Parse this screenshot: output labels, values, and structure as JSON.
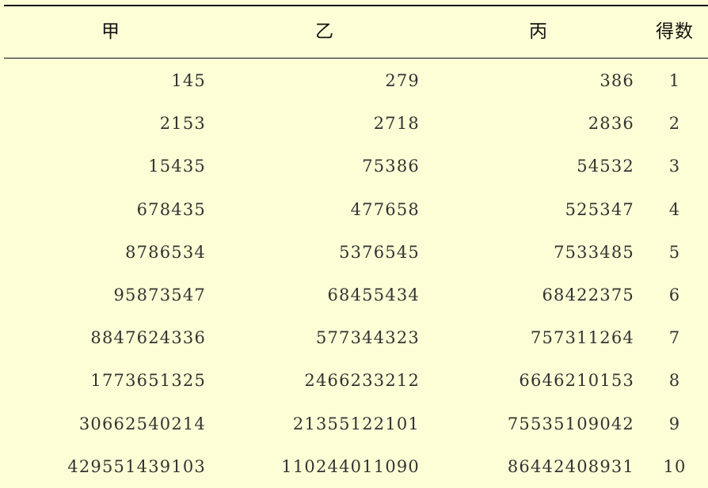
{
  "table": {
    "headers": [
      "甲",
      "乙",
      "丙",
      "得数"
    ],
    "rows": [
      [
        "145",
        "279",
        "386",
        "1"
      ],
      [
        "2153",
        "2718",
        "2836",
        "2"
      ],
      [
        "15435",
        "75386",
        "54532",
        "3"
      ],
      [
        "678435",
        "477658",
        "525347",
        "4"
      ],
      [
        "8786534",
        "5376545",
        "7533485",
        "5"
      ],
      [
        "95873547",
        "68455434",
        "68422375",
        "6"
      ],
      [
        "8847624336",
        "577344323",
        "757311264",
        "7"
      ],
      [
        "1773651325",
        "2466233212",
        "6646210153",
        "8"
      ],
      [
        "30662540214",
        "21355122101",
        "75535109042",
        "9"
      ],
      [
        "429551439103",
        "110244011090",
        "86442408931",
        "10"
      ]
    ]
  },
  "colors": {
    "background": "#fefed6",
    "rule": "#111111",
    "text": "#333333"
  }
}
